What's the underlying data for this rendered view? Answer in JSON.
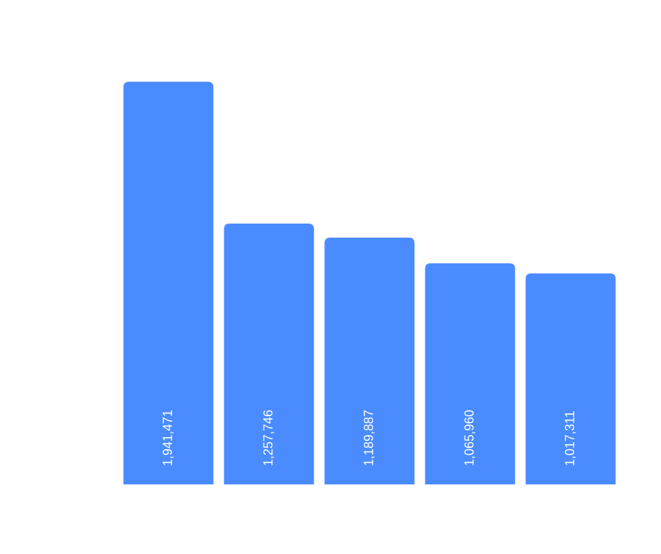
{
  "chart_data": {
    "type": "bar",
    "values": [
      1941471,
      1257746,
      1189887,
      1065960,
      1017311
    ],
    "value_labels": [
      "1,941,471",
      "1,257,746",
      "1,189,887",
      "1,065,960",
      "1,017,311"
    ],
    "color": "#4a8cff",
    "ylim": [
      0,
      2000000
    ]
  }
}
